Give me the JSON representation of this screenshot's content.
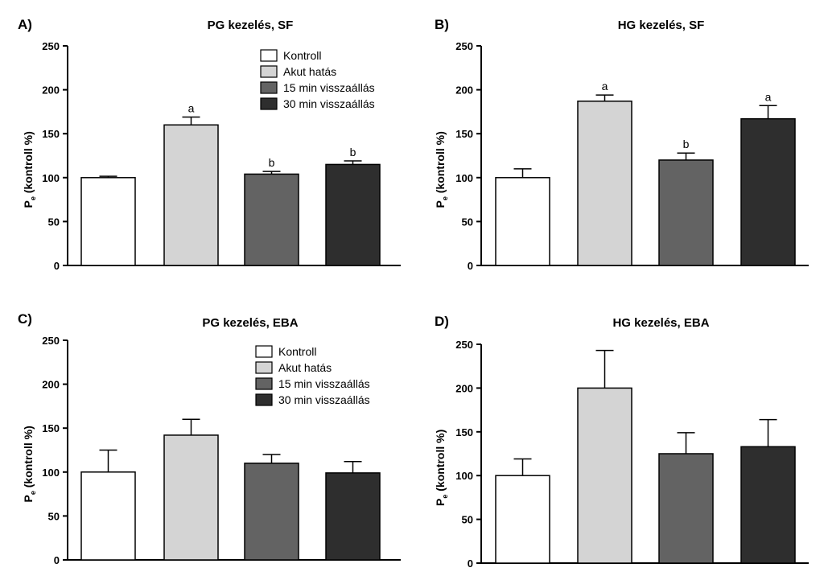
{
  "colors": {
    "Kontroll": "#ffffff",
    "Akut hatás": "#d4d4d4",
    "15 min visszaállás": "#636363",
    "30 min visszaállás": "#2e2e2e"
  },
  "chart_data": [
    {
      "panel": "A)",
      "type": "bar",
      "title": "PG kezelés, SF",
      "ylabel_main": "P",
      "ylabel_sub": "e",
      "ylabel_rest": " (kontroll %)",
      "ylim": [
        0,
        250
      ],
      "yticks": [
        0,
        50,
        100,
        150,
        200,
        250
      ],
      "categories": [
        "Kontroll",
        "Akut hatás",
        "15 min visszaállás",
        "30 min visszaállás"
      ],
      "values": [
        100,
        160,
        104,
        115
      ],
      "errors": [
        1.5,
        9,
        3,
        4
      ],
      "annotations": [
        "",
        "a",
        "b",
        "b"
      ],
      "legend": [
        "Kontroll",
        "Akut hatás",
        "15 min visszaállás",
        "30 min visszaállás"
      ],
      "legend_position": "top-right"
    },
    {
      "panel": "B)",
      "type": "bar",
      "title": "HG kezelés, SF",
      "ylabel_main": "P",
      "ylabel_sub": "e",
      "ylabel_rest": " (kontroll %)",
      "ylim": [
        0,
        250
      ],
      "yticks": [
        0,
        50,
        100,
        150,
        200,
        250
      ],
      "categories": [
        "Kontroll",
        "Akut hatás",
        "15 min visszaállás",
        "30 min visszaállás"
      ],
      "values": [
        100,
        187,
        120,
        167
      ],
      "errors": [
        10,
        7,
        8,
        15
      ],
      "annotations": [
        "",
        "a",
        "b",
        "a"
      ],
      "legend": []
    },
    {
      "panel": "C)",
      "type": "bar",
      "title": "PG kezelés, EBA",
      "ylabel_main": "P",
      "ylabel_sub": "e",
      "ylabel_rest": " (kontroll %)",
      "ylim": [
        0,
        250
      ],
      "yticks": [
        0,
        50,
        100,
        150,
        200,
        250
      ],
      "categories": [
        "Kontroll",
        "Akut hatás",
        "15 min visszaállás",
        "30 min visszaállás"
      ],
      "values": [
        100,
        142,
        110,
        99
      ],
      "errors": [
        25,
        18,
        10,
        13
      ],
      "annotations": [
        "",
        "",
        "",
        ""
      ],
      "legend": [
        "Kontroll",
        "Akut hatás",
        "15 min visszaállás",
        "30 min visszaállás"
      ],
      "legend_position": "top-right"
    },
    {
      "panel": "D)",
      "type": "bar",
      "title": "HG kezelés, EBA",
      "ylabel_main": "P",
      "ylabel_sub": "e",
      "ylabel_rest": " (kontroll %)",
      "ylim": [
        0,
        250
      ],
      "yticks": [
        0,
        50,
        100,
        150,
        200,
        250
      ],
      "categories": [
        "Kontroll",
        "Akut hatás",
        "15 min visszaállás",
        "30 min visszaállás"
      ],
      "values": [
        100,
        200,
        125,
        133
      ],
      "errors": [
        19,
        43,
        24,
        31
      ],
      "annotations": [
        "",
        "",
        "",
        ""
      ],
      "legend": []
    }
  ]
}
